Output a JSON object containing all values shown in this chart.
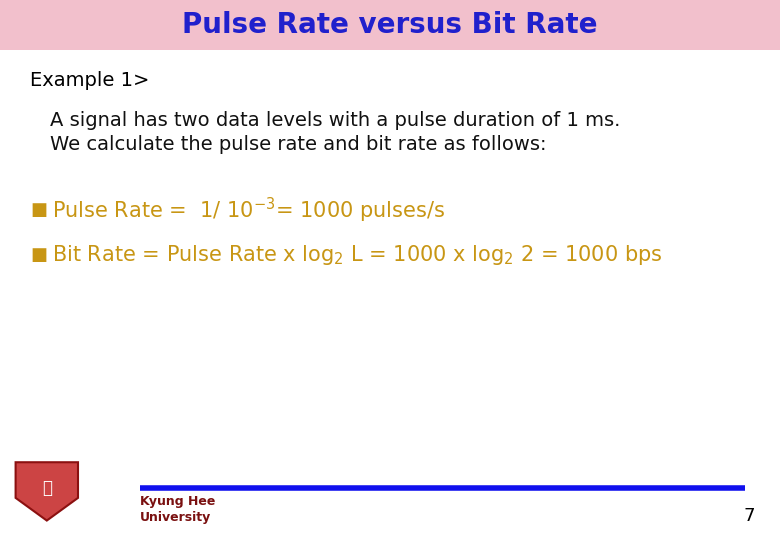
{
  "title": "Pulse Rate versus Bit Rate",
  "title_color": "#2020cc",
  "title_bg_color": "#f2c0cc",
  "title_fontsize": 20,
  "bg_color": "#ffffff",
  "example_label": "Example 1>",
  "example_color": "#000000",
  "example_fontsize": 14,
  "body_text1": "A signal has two data levels with a pulse duration of 1 ms.",
  "body_text2": "We calculate the pulse rate and bit rate as follows:",
  "body_color": "#111111",
  "body_fontsize": 14,
  "golden_color": "#c89614",
  "page_number": "7",
  "page_color": "#000000",
  "footer_line_color": "#1010ee",
  "univ_text_line1": "Kyung Hee",
  "univ_text_line2": "University",
  "univ_color": "#7a1010"
}
